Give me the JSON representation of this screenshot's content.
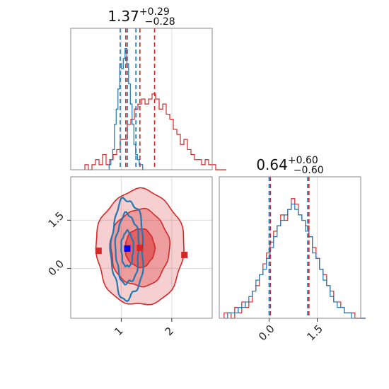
{
  "chart_data": [
    {
      "type": "histogram",
      "panel": "param1-marginal",
      "title": {
        "value": "1.37",
        "plus": "+0.29",
        "minus": "−0.28"
      },
      "xlim": [
        0.0,
        2.8
      ],
      "ylim": [
        0,
        28
      ],
      "grid": true,
      "xticks": [
        1,
        2
      ],
      "series": [
        {
          "color": "#d62728",
          "step": 0.07,
          "start": 0.28,
          "counts": [
            1,
            0,
            1,
            2,
            1,
            3,
            1,
            2,
            3,
            4,
            6,
            6,
            9,
            10,
            12,
            13,
            14,
            13,
            14,
            15,
            14,
            12,
            13,
            11,
            10,
            8,
            7,
            5,
            6,
            4,
            3,
            2,
            2,
            1,
            2,
            1,
            1,
            0,
            0,
            0
          ]
        },
        {
          "color": "#1f77b4",
          "step": 0.035,
          "start": 0.76,
          "counts": [
            1,
            2,
            4,
            9,
            12,
            16,
            21,
            20,
            22,
            24,
            21,
            17,
            13,
            9,
            5,
            3,
            2,
            1,
            1,
            0
          ]
        }
      ],
      "quantiles": [
        {
          "color": "#d62728",
          "values": [
            1.09,
            1.37,
            1.66
          ]
        },
        {
          "color": "#1f77b4",
          "values": [
            0.98,
            1.12,
            1.29
          ]
        }
      ]
    },
    {
      "type": "contour",
      "panel": "joint-2d",
      "xlim": [
        0.0,
        2.8
      ],
      "ylim": [
        -1.55,
        2.85
      ],
      "grid": true,
      "xticks": [
        1,
        2
      ],
      "yticks": [
        0.0,
        1.5
      ],
      "ytick_labels": [
        "0.0",
        "1.5"
      ],
      "red_contours": {
        "color": "#d62728",
        "center": [
          1.37,
          0.64
        ],
        "levels": [
          {
            "rx": 0.29,
            "ry": 0.6
          },
          {
            "rx": 0.58,
            "ry": 1.2
          },
          {
            "rx": 0.87,
            "ry": 1.8
          }
        ]
      },
      "blue_contours": {
        "color": "#1f77b4",
        "center": [
          1.12,
          0.6
        ],
        "levels": [
          {
            "rx": 0.12,
            "ry": 0.55
          },
          {
            "rx": 0.23,
            "ry": 1.08
          },
          {
            "rx": 0.32,
            "ry": 1.55
          }
        ]
      },
      "markers": [
        {
          "color": "#d62728",
          "x": 0.55,
          "y": 0.55
        },
        {
          "color": "#d62728",
          "x": 2.25,
          "y": 0.42
        },
        {
          "color": "#d62728",
          "x": 1.37,
          "y": 0.64
        },
        {
          "color": "#0000ff",
          "x": 1.12,
          "y": 0.62
        }
      ]
    },
    {
      "type": "histogram",
      "panel": "param2-marginal",
      "title": {
        "value": "0.64",
        "plus": "+0.60",
        "minus": "−0.60"
      },
      "xlim": [
        -1.55,
        2.85
      ],
      "ylim": [
        0,
        26
      ],
      "grid": true,
      "xticks": [
        0.0,
        1.5
      ],
      "xtick_labels": [
        "0.0",
        "1.5"
      ],
      "series": [
        {
          "color": "#d62728",
          "step": 0.11,
          "start": -1.4,
          "counts": [
            1,
            1,
            0,
            2,
            1,
            3,
            2,
            3,
            5,
            6,
            8,
            10,
            12,
            14,
            16,
            17,
            19,
            18,
            20,
            22,
            21,
            19,
            18,
            17,
            15,
            13,
            11,
            9,
            8,
            6,
            5,
            3,
            3,
            2,
            1,
            1,
            1,
            0,
            0,
            0
          ]
        },
        {
          "color": "#1f77b4",
          "step": 0.11,
          "start": -1.4,
          "counts": [
            0,
            1,
            1,
            1,
            2,
            2,
            3,
            4,
            5,
            7,
            8,
            9,
            11,
            13,
            15,
            17,
            18,
            19,
            20,
            21,
            20,
            19,
            18,
            16,
            15,
            12,
            11,
            9,
            7,
            6,
            4,
            3,
            2,
            2,
            1,
            1,
            0,
            0,
            0,
            0
          ]
        }
      ],
      "quantiles": [
        {
          "color": "#d62728",
          "values": [
            0.04,
            1.24
          ]
        },
        {
          "color": "#1f77b4",
          "values": [
            0.0,
            1.2
          ]
        }
      ]
    }
  ]
}
